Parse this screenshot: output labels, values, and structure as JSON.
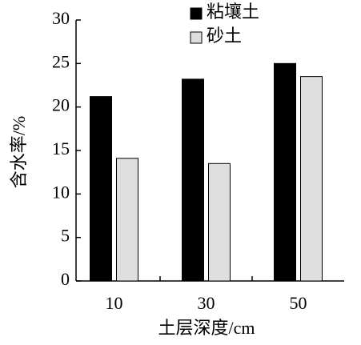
{
  "chart_data": {
    "type": "bar",
    "categories": [
      "10",
      "30",
      "50"
    ],
    "series": [
      {
        "name": "粘壤土",
        "color": "#000000",
        "values": [
          21.2,
          23.2,
          25.0
        ]
      },
      {
        "name": "砂土",
        "color": "#dedede",
        "values": [
          14.1,
          13.5,
          23.5
        ]
      }
    ],
    "ylim": [
      0,
      30
    ],
    "yticks": [
      0,
      5,
      10,
      15,
      20,
      25,
      30
    ],
    "y_label": "含水率/%",
    "x_label": "土层深度/cm"
  }
}
